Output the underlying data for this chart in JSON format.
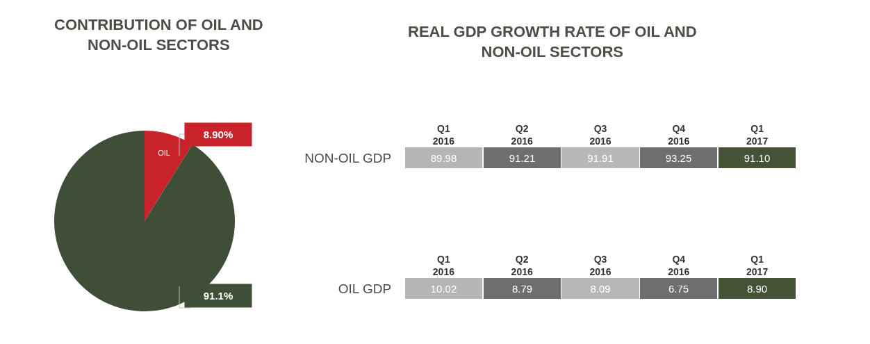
{
  "chart_data": [
    {
      "type": "pie",
      "title": "CONTRIBUTION OF OIL AND\nNON-OIL SECTORS",
      "categories": [
        "OIL",
        null
      ],
      "values": [
        8.9,
        91.1
      ],
      "colors": [
        "#c8232a",
        "#3f4e37"
      ],
      "value_labels": [
        "8.90%",
        "91.1%"
      ]
    },
    {
      "type": "heatmap",
      "title": "REAL GDP GROWTH RATE OF OIL AND\nNON-OIL SECTORS",
      "categories": [
        "Q1\n2016",
        "Q2\n2016",
        "Q3\n2016",
        "Q4\n2016",
        "Q1\n2017"
      ],
      "y_categories": [
        "NON-OIL GDP"
      ],
      "cells": [
        [
          89.98,
          91.21,
          91.91,
          93.25,
          91.1
        ]
      ],
      "cell_labels": [
        [
          "89.98",
          "91.21",
          "91.91",
          "93.25",
          "91.10"
        ]
      ],
      "colors": [
        "#b5b5b5",
        "#6e6e6e",
        "#b8b8b8",
        "#6e6e6e",
        "#445236"
      ],
      "data_labels": true
    },
    {
      "type": "heatmap",
      "categories": [
        "Q1\n2016",
        "Q2\n2016",
        "Q3\n2016",
        "Q4\n2016",
        "Q1\n2017"
      ],
      "y_categories": [
        "OIL GDP"
      ],
      "cells": [
        [
          10.02,
          8.79,
          8.09,
          6.75,
          8.9
        ]
      ],
      "cell_labels": [
        [
          "10.02",
          "8.79",
          "8.09",
          "6.75",
          "8.90"
        ]
      ],
      "colors": [
        "#b5b5b5",
        "#6e6e6e",
        "#b8b8b8",
        "#6e6e6e",
        "#445236"
      ],
      "data_labels": true
    }
  ]
}
